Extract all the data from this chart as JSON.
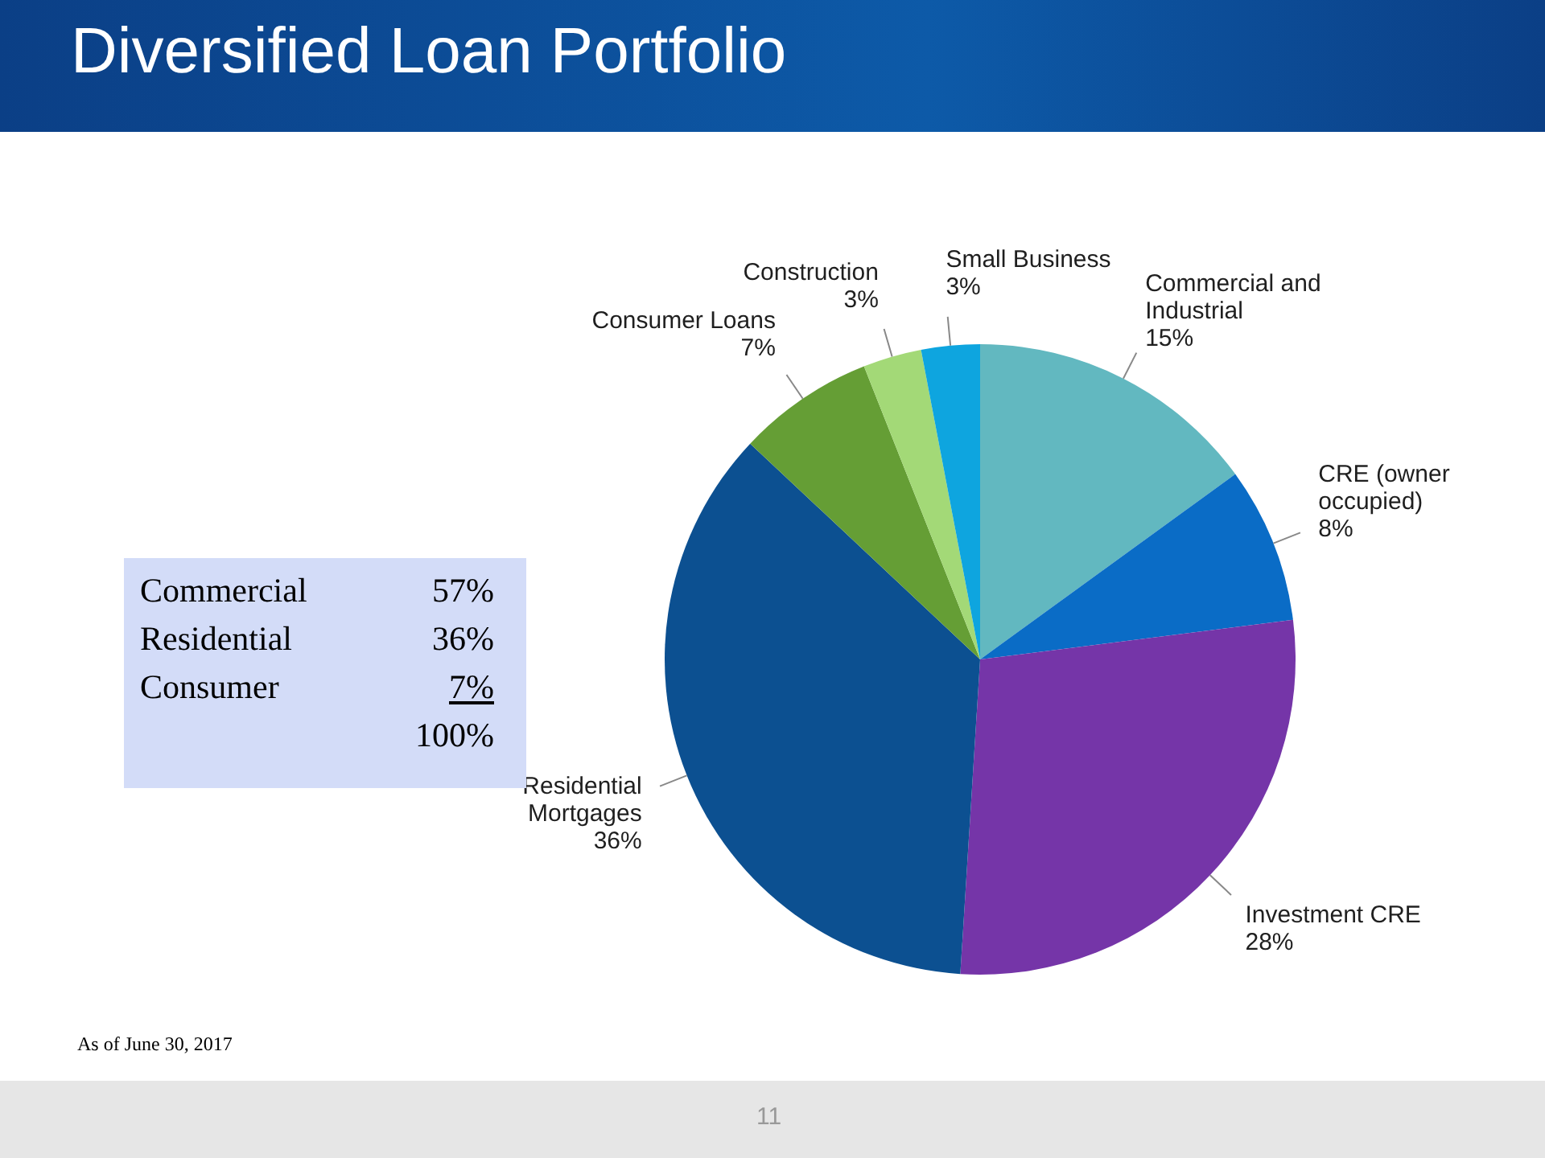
{
  "chart_data": [
    {
      "type": "pie",
      "title": "Diversified Loan Portfolio",
      "categories": [
        "Commercial and Industrial",
        "CRE (owner occupied)",
        "Investment CRE",
        "Residential Mortgages",
        "Consumer Loans",
        "Construction",
        "Small Business"
      ],
      "values": [
        15,
        8,
        28,
        36,
        7,
        3,
        3
      ],
      "colors": [
        "#62b8c0",
        "#0a6cc6",
        "#7535a8",
        "#0c5091",
        "#659e35",
        "#a3d977",
        "#0ea5df"
      ],
      "value_labels": [
        "15%",
        "8%",
        "28%",
        "36%",
        "7%",
        "3%",
        "3%"
      ],
      "annotations": [
        "As of June 30, 2017",
        "11"
      ]
    },
    {
      "type": "other",
      "annotations": [
        "Commercial",
        "57%",
        "Residential",
        "36%",
        "Consumer",
        "7%",
        "100%"
      ]
    }
  ]
}
